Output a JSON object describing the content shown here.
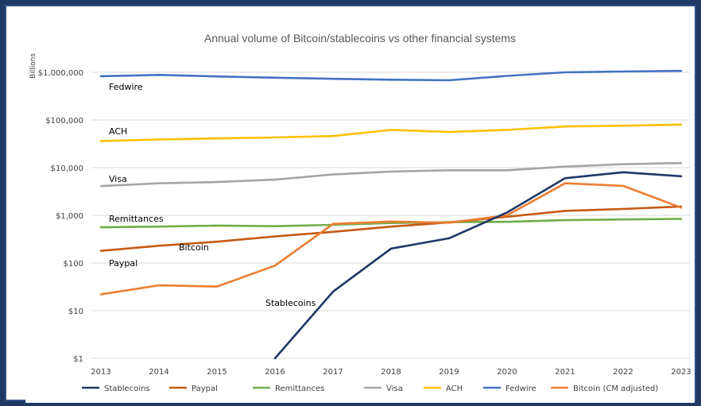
{
  "chart_data": {
    "type": "line",
    "title": "Annual volume of Bitcoin/stablecoins vs other financial systems",
    "ylabel": "Billions",
    "xlabel": "",
    "y_scale": "log",
    "ylim": [
      1,
      1000000
    ],
    "y_ticks": [
      1,
      10,
      100,
      1000,
      10000,
      100000,
      1000000
    ],
    "y_tick_labels": [
      "$1",
      "$10",
      "$100",
      "$1,000",
      "$10,000",
      "$100,000",
      "$1,000,000"
    ],
    "x": [
      "2013",
      "2014",
      "2015",
      "2016",
      "2017",
      "2018",
      "2019",
      "2020",
      "2021",
      "2022",
      "2023"
    ],
    "grid": "horizontal",
    "legend_position": "bottom",
    "series": [
      {
        "name": "Stablecoins",
        "color": "#1f3864",
        "values": [
          null,
          null,
          null,
          1,
          25,
          200,
          330,
          1150,
          6000,
          8000,
          6600
        ]
      },
      {
        "name": "Paypal",
        "color": "#c55a11",
        "values": [
          180,
          230,
          280,
          360,
          450,
          580,
          710,
          935,
          1240,
          1360,
          1530
        ]
      },
      {
        "name": "Remittances",
        "color": "#70ad47",
        "values": [
          560,
          580,
          610,
          590,
          630,
          690,
          720,
          730,
          790,
          820,
          840
        ]
      },
      {
        "name": "Visa",
        "color": "#a5a5a5",
        "values": [
          4100,
          4700,
          5000,
          5600,
          7200,
          8300,
          8800,
          8800,
          10500,
          11800,
          12500
        ]
      },
      {
        "name": "ACH",
        "color": "#ffc000",
        "values": [
          36000,
          39000,
          41000,
          43000,
          46000,
          62000,
          56000,
          62000,
          73000,
          76000,
          80000
        ]
      },
      {
        "name": "Fedwire",
        "color": "#4472c4",
        "values": [
          830000,
          880000,
          820000,
          770000,
          730000,
          700000,
          680000,
          840000,
          1000000,
          1040000,
          1070000
        ]
      },
      {
        "name": "Bitcoin (CM adjusted)",
        "color": "#ed7d31",
        "values": [
          22,
          34,
          32,
          88,
          660,
          740,
          700,
          1000,
          4700,
          4150,
          1450
        ]
      }
    ],
    "annotations": [
      {
        "text": "Fedwire",
        "series": "Fedwire"
      },
      {
        "text": "ACH",
        "series": "ACH"
      },
      {
        "text": "Visa",
        "series": "Visa"
      },
      {
        "text": "Remittances",
        "series": "Remittances"
      },
      {
        "text": "Paypal",
        "series": "Paypal"
      },
      {
        "text": "Bitcoin",
        "series": "Bitcoin (CM adjusted)"
      },
      {
        "text": "Stablecoins",
        "series": "Stablecoins"
      }
    ]
  }
}
